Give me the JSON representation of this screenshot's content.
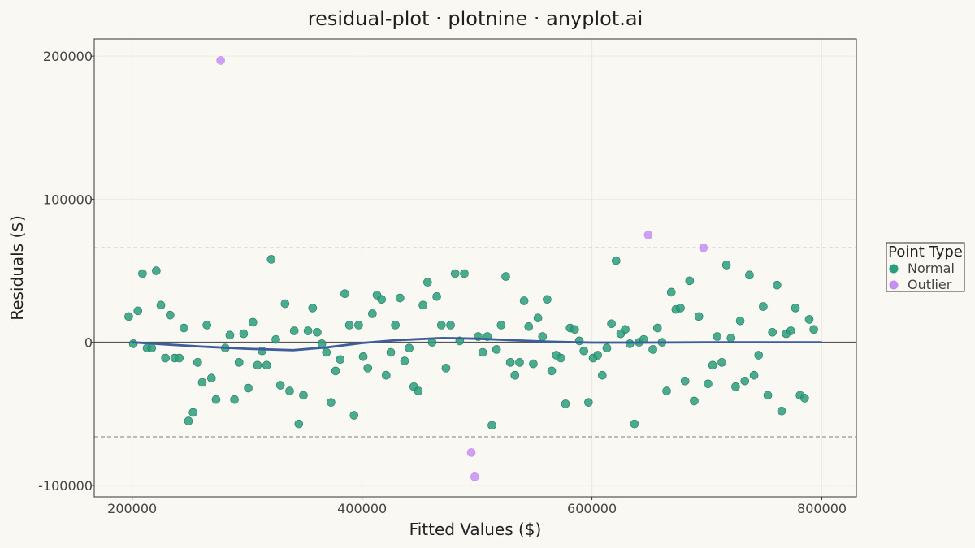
{
  "chart_data": {
    "type": "scatter",
    "title": "residual-plot · plotnine · anyplot.ai",
    "xlabel": "Fitted Values ($)",
    "ylabel": "Residuals ($)",
    "xlim": [
      167000,
      830000
    ],
    "ylim": [
      -108000,
      212000
    ],
    "x_ticks": [
      200000,
      400000,
      600000,
      800000
    ],
    "y_ticks": [
      -100000,
      0,
      100000,
      200000
    ],
    "x_tick_labels": [
      "200000",
      "400000",
      "600000",
      "800000"
    ],
    "y_tick_labels": [
      "-100000",
      "0",
      "100000",
      "200000"
    ],
    "grid": true,
    "zero_line": 0,
    "threshold_lines": [
      66000,
      -66000
    ],
    "legend": {
      "title": "Point Type",
      "position": "right",
      "entries": [
        {
          "name": "Normal",
          "color": "#2a9e7d"
        },
        {
          "name": "Outlier",
          "color": "#c68ff2"
        }
      ]
    },
    "series": [
      {
        "name": "Normal",
        "color": "#2a9e7d",
        "points": [
          [
            197000,
            18000
          ],
          [
            201000,
            -1000
          ],
          [
            205000,
            22000
          ],
          [
            209000,
            48000
          ],
          [
            213000,
            -4000
          ],
          [
            217000,
            -4000
          ],
          [
            221000,
            50000
          ],
          [
            225000,
            26000
          ],
          [
            229000,
            -11000
          ],
          [
            233000,
            19000
          ],
          [
            237000,
            -11000
          ],
          [
            241000,
            -11000
          ],
          [
            245000,
            10000
          ],
          [
            249000,
            -55000
          ],
          [
            253000,
            -49000
          ],
          [
            257000,
            -14000
          ],
          [
            261000,
            -28000
          ],
          [
            265000,
            12000
          ],
          [
            269000,
            -25000
          ],
          [
            273000,
            -40000
          ],
          [
            281000,
            -4000
          ],
          [
            285000,
            5000
          ],
          [
            289000,
            -40000
          ],
          [
            293000,
            -14000
          ],
          [
            297000,
            6000
          ],
          [
            301000,
            -32000
          ],
          [
            305000,
            14000
          ],
          [
            309000,
            -16000
          ],
          [
            313000,
            -6000
          ],
          [
            317000,
            -16000
          ],
          [
            321000,
            58000
          ],
          [
            325000,
            2000
          ],
          [
            329000,
            -30000
          ],
          [
            333000,
            27000
          ],
          [
            337000,
            -34000
          ],
          [
            341000,
            8000
          ],
          [
            345000,
            -57000
          ],
          [
            349000,
            -37000
          ],
          [
            353000,
            8000
          ],
          [
            357000,
            24000
          ],
          [
            361000,
            7000
          ],
          [
            365000,
            -1000
          ],
          [
            369000,
            -7000
          ],
          [
            373000,
            -42000
          ],
          [
            377000,
            -20000
          ],
          [
            381000,
            -12000
          ],
          [
            385000,
            34000
          ],
          [
            389000,
            12000
          ],
          [
            393000,
            -51000
          ],
          [
            397000,
            12000
          ],
          [
            401000,
            -10000
          ],
          [
            405000,
            -18000
          ],
          [
            409000,
            20000
          ],
          [
            413000,
            33000
          ],
          [
            417000,
            30000
          ],
          [
            421000,
            -23000
          ],
          [
            425000,
            -7000
          ],
          [
            429000,
            12000
          ],
          [
            433000,
            31000
          ],
          [
            437000,
            -13000
          ],
          [
            441000,
            -4000
          ],
          [
            445000,
            -31000
          ],
          [
            449000,
            -34000
          ],
          [
            453000,
            26000
          ],
          [
            457000,
            42000
          ],
          [
            461000,
            0
          ],
          [
            465000,
            32000
          ],
          [
            469000,
            12000
          ],
          [
            473000,
            -18000
          ],
          [
            477000,
            12000
          ],
          [
            481000,
            48000
          ],
          [
            485000,
            1000
          ],
          [
            489000,
            48000
          ],
          [
            501000,
            4000
          ],
          [
            505000,
            -7000
          ],
          [
            509000,
            4000
          ],
          [
            513000,
            -58000
          ],
          [
            517000,
            -5000
          ],
          [
            521000,
            12000
          ],
          [
            525000,
            46000
          ],
          [
            529000,
            -14000
          ],
          [
            533000,
            -23000
          ],
          [
            537000,
            -14000
          ],
          [
            541000,
            29000
          ],
          [
            545000,
            11000
          ],
          [
            549000,
            -15000
          ],
          [
            553000,
            17000
          ],
          [
            557000,
            4000
          ],
          [
            561000,
            30000
          ],
          [
            565000,
            -20000
          ],
          [
            569000,
            -9000
          ],
          [
            573000,
            -11000
          ],
          [
            577000,
            -43000
          ],
          [
            581000,
            10000
          ],
          [
            585000,
            9000
          ],
          [
            589000,
            1000
          ],
          [
            593000,
            -6000
          ],
          [
            597000,
            -42000
          ],
          [
            601000,
            -11000
          ],
          [
            605000,
            -9000
          ],
          [
            609000,
            -23000
          ],
          [
            613000,
            -4000
          ],
          [
            617000,
            13000
          ],
          [
            621000,
            57000
          ],
          [
            625000,
            6000
          ],
          [
            629000,
            9000
          ],
          [
            633000,
            -1000
          ],
          [
            637000,
            -57000
          ],
          [
            641000,
            0
          ],
          [
            645000,
            2000
          ],
          [
            653000,
            -5000
          ],
          [
            657000,
            10000
          ],
          [
            661000,
            0
          ],
          [
            665000,
            -34000
          ],
          [
            669000,
            35000
          ],
          [
            673000,
            23000
          ],
          [
            677000,
            24000
          ],
          [
            681000,
            -27000
          ],
          [
            685000,
            43000
          ],
          [
            689000,
            -41000
          ],
          [
            693000,
            18000
          ],
          [
            701000,
            -29000
          ],
          [
            705000,
            -16000
          ],
          [
            709000,
            4000
          ],
          [
            713000,
            -14000
          ],
          [
            717000,
            54000
          ],
          [
            721000,
            3000
          ],
          [
            725000,
            -31000
          ],
          [
            729000,
            15000
          ],
          [
            733000,
            -27000
          ],
          [
            737000,
            47000
          ],
          [
            741000,
            -23000
          ],
          [
            745000,
            -9000
          ],
          [
            749000,
            25000
          ],
          [
            753000,
            -37000
          ],
          [
            757000,
            7000
          ],
          [
            761000,
            40000
          ],
          [
            765000,
            -48000
          ],
          [
            769000,
            6000
          ],
          [
            773000,
            8000
          ],
          [
            777000,
            24000
          ],
          [
            781000,
            -37000
          ],
          [
            785000,
            -39000
          ],
          [
            789000,
            16000
          ],
          [
            793000,
            9000
          ]
        ]
      },
      {
        "name": "Outlier",
        "color": "#c68ff2",
        "points": [
          [
            277000,
            197000
          ],
          [
            495000,
            -77000
          ],
          [
            498000,
            -94000
          ],
          [
            649000,
            75000
          ],
          [
            697000,
            66000
          ]
        ]
      }
    ],
    "trend_line": {
      "color": "#3c5e9c",
      "points": [
        [
          200000,
          0
        ],
        [
          230000,
          -1500
        ],
        [
          260000,
          -3000
        ],
        [
          300000,
          -4500
        ],
        [
          340000,
          -5500
        ],
        [
          370000,
          -3500
        ],
        [
          400000,
          -500
        ],
        [
          430000,
          1500
        ],
        [
          470000,
          3000
        ],
        [
          500000,
          2500
        ],
        [
          530000,
          1500
        ],
        [
          560000,
          500
        ],
        [
          600000,
          -200
        ],
        [
          650000,
          -200
        ],
        [
          700000,
          0
        ],
        [
          750000,
          0
        ],
        [
          800000,
          0
        ]
      ]
    }
  }
}
